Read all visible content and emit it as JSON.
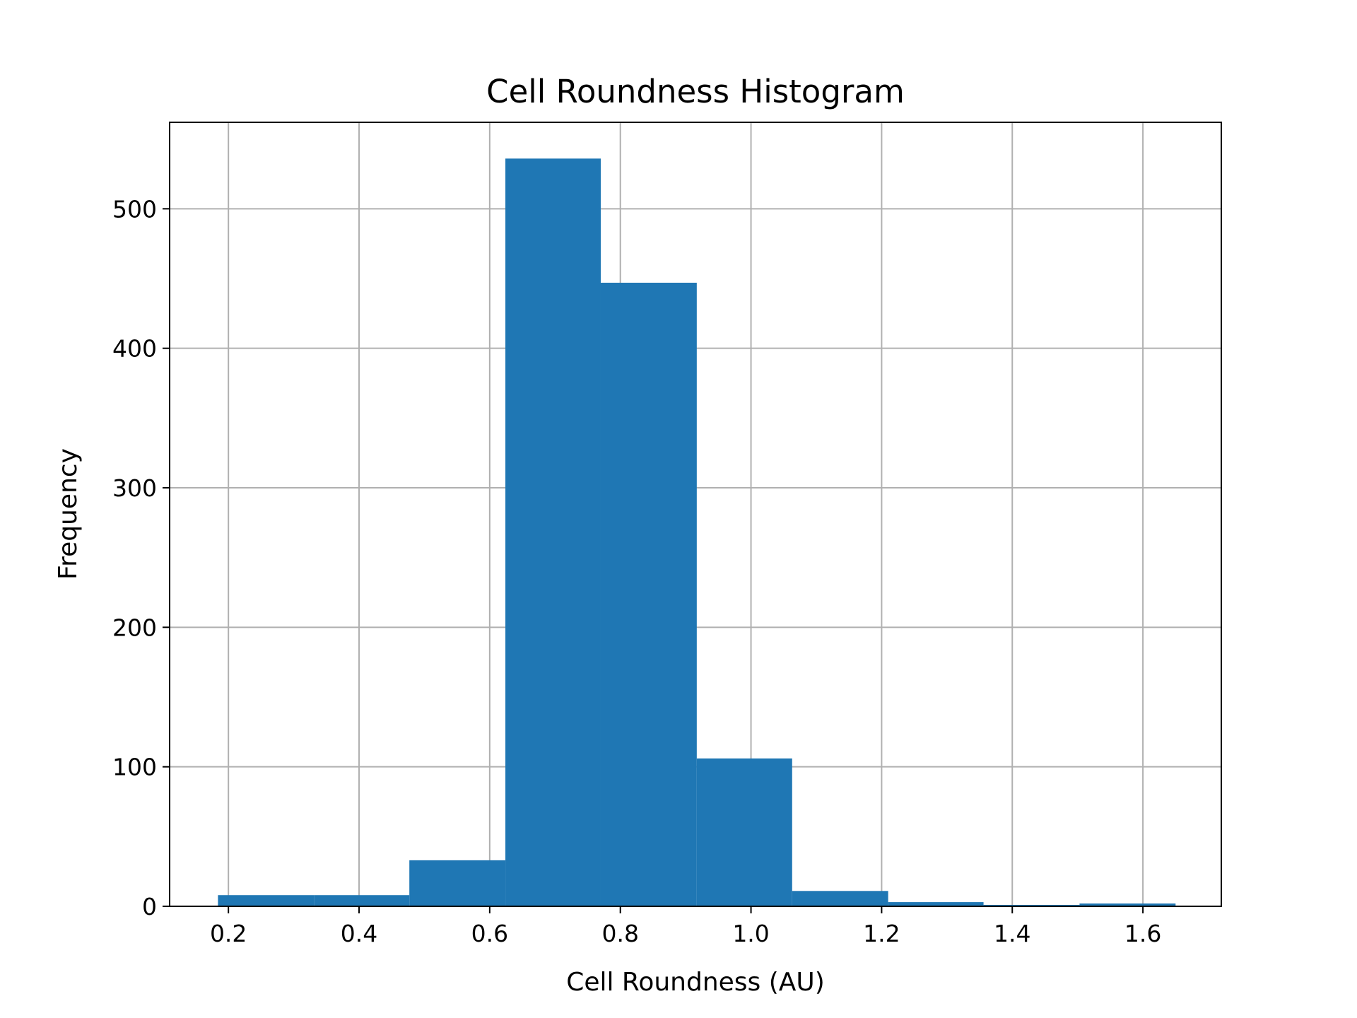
{
  "chart_data": {
    "type": "bar",
    "title": "Cell Roundness Histogram",
    "xlabel": "Cell Roundness (AU)",
    "ylabel": "Frequency",
    "xlim": [
      0.11,
      1.72
    ],
    "ylim": [
      0,
      562
    ],
    "x_ticks": [
      0.2,
      0.4,
      0.6,
      0.8,
      1.0,
      1.2,
      1.4,
      1.6
    ],
    "x_tick_labels": [
      "0.2",
      "0.4",
      "0.6",
      "0.8",
      "1.0",
      "1.2",
      "1.4",
      "1.6"
    ],
    "y_ticks": [
      0,
      100,
      200,
      300,
      400,
      500
    ],
    "y_tick_labels": [
      "0",
      "100",
      "200",
      "300",
      "400",
      "500"
    ],
    "grid": true,
    "bins": [
      {
        "x0": 0.184,
        "x1": 0.331,
        "count": 8
      },
      {
        "x0": 0.331,
        "x1": 0.477,
        "count": 8
      },
      {
        "x0": 0.477,
        "x1": 0.624,
        "count": 33
      },
      {
        "x0": 0.624,
        "x1": 0.77,
        "count": 536
      },
      {
        "x0": 0.77,
        "x1": 0.917,
        "count": 447
      },
      {
        "x0": 0.917,
        "x1": 1.063,
        "count": 106
      },
      {
        "x0": 1.063,
        "x1": 1.21,
        "count": 11
      },
      {
        "x0": 1.21,
        "x1": 1.356,
        "count": 3
      },
      {
        "x0": 1.356,
        "x1": 1.503,
        "count": 1
      },
      {
        "x0": 1.503,
        "x1": 1.65,
        "count": 2
      }
    ],
    "colors": {
      "bar": "#1f77b4",
      "grid": "#b0b0b0",
      "axes": "#000000"
    }
  }
}
